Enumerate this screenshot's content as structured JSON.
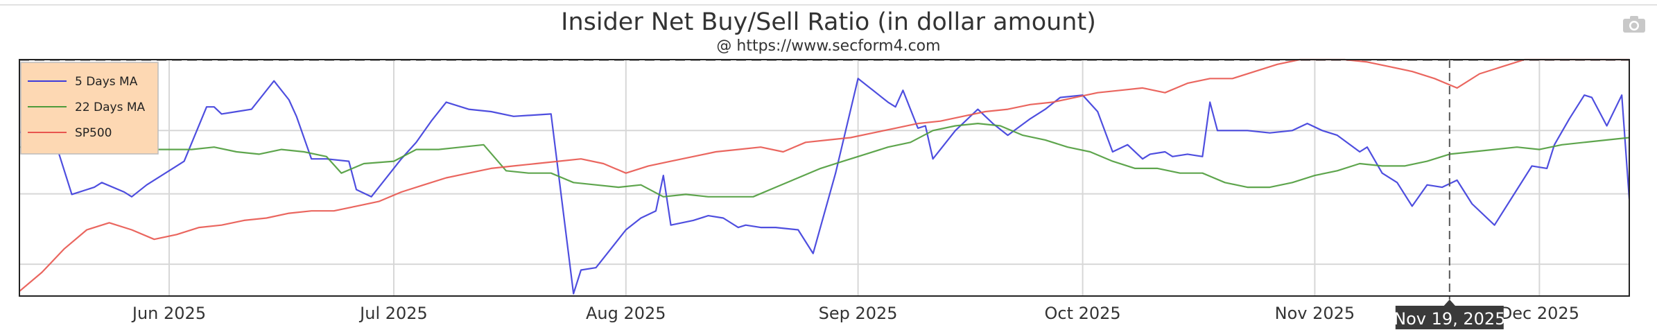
{
  "header": {
    "title": "Insider Net Buy/Sell Ratio (in dollar amount)",
    "subtitle": "@ https://www.secform4.com"
  },
  "toolbar": {
    "icon": "camera-icon"
  },
  "chart_data": {
    "type": "line",
    "title": "Insider Net Buy/Sell Ratio (in dollar amount)",
    "subtitle": "@ https://www.secform4.com",
    "x_range": [
      "2025-05-12",
      "2025-12-13"
    ],
    "y_range": [
      0,
      100
    ],
    "grid": true,
    "legend_placement": "top-left",
    "x_ticks": [
      {
        "date": "2025-06-01",
        "label": "Jun 2025"
      },
      {
        "date": "2025-07-01",
        "label": "Jul 2025"
      },
      {
        "date": "2025-08-01",
        "label": "Aug 2025"
      },
      {
        "date": "2025-09-01",
        "label": "Sep 2025"
      },
      {
        "date": "2025-10-01",
        "label": "Oct 2025"
      },
      {
        "date": "2025-11-01",
        "label": "Nov 2025"
      },
      {
        "date": "2025-12-01",
        "label": "Dec 2025"
      }
    ],
    "crosshair": {
      "date": "2025-11-19",
      "label": "Nov 19, 2025"
    },
    "series": [
      {
        "name": "5 Days MA",
        "color": "#3b3bdc",
        "points": [
          [
            "2025-05-12",
            69
          ],
          [
            "2025-05-14",
            73
          ],
          [
            "2025-05-15",
            69
          ],
          [
            "2025-05-16",
            73
          ],
          [
            "2025-05-19",
            43
          ],
          [
            "2025-05-22",
            46
          ],
          [
            "2025-05-23",
            48
          ],
          [
            "2025-05-26",
            44
          ],
          [
            "2025-05-27",
            42
          ],
          [
            "2025-05-29",
            47
          ],
          [
            "2025-06-02",
            55
          ],
          [
            "2025-06-03",
            57
          ],
          [
            "2025-06-06",
            80
          ],
          [
            "2025-06-07",
            80
          ],
          [
            "2025-06-08",
            77
          ],
          [
            "2025-06-10",
            78
          ],
          [
            "2025-06-12",
            79
          ],
          [
            "2025-06-15",
            91
          ],
          [
            "2025-06-17",
            83
          ],
          [
            "2025-06-18",
            76
          ],
          [
            "2025-06-20",
            58
          ],
          [
            "2025-06-22",
            58
          ],
          [
            "2025-06-25",
            57
          ],
          [
            "2025-06-26",
            45
          ],
          [
            "2025-06-28",
            42
          ],
          [
            "2025-07-02",
            58
          ],
          [
            "2025-07-04",
            65
          ],
          [
            "2025-07-06",
            74
          ],
          [
            "2025-07-08",
            82
          ],
          [
            "2025-07-11",
            79
          ],
          [
            "2025-07-14",
            78
          ],
          [
            "2025-07-17",
            76
          ],
          [
            "2025-07-22",
            77
          ],
          [
            "2025-07-25",
            1
          ],
          [
            "2025-07-26",
            11
          ],
          [
            "2025-07-28",
            12
          ],
          [
            "2025-07-30",
            20
          ],
          [
            "2025-08-01",
            28
          ],
          [
            "2025-08-03",
            33
          ],
          [
            "2025-08-05",
            36
          ],
          [
            "2025-08-06",
            51
          ],
          [
            "2025-08-07",
            30
          ],
          [
            "2025-08-10",
            32
          ],
          [
            "2025-08-12",
            34
          ],
          [
            "2025-08-14",
            33
          ],
          [
            "2025-08-16",
            29
          ],
          [
            "2025-08-17",
            30
          ],
          [
            "2025-08-19",
            29
          ],
          [
            "2025-08-21",
            29
          ],
          [
            "2025-08-24",
            28
          ],
          [
            "2025-08-26",
            18
          ],
          [
            "2025-08-29",
            52
          ],
          [
            "2025-09-01",
            92
          ],
          [
            "2025-09-03",
            87
          ],
          [
            "2025-09-05",
            82
          ],
          [
            "2025-09-06",
            80
          ],
          [
            "2025-09-07",
            87
          ],
          [
            "2025-09-09",
            71
          ],
          [
            "2025-09-10",
            72
          ],
          [
            "2025-09-11",
            58
          ],
          [
            "2025-09-14",
            70
          ],
          [
            "2025-09-17",
            79
          ],
          [
            "2025-09-19",
            73
          ],
          [
            "2025-09-21",
            68
          ],
          [
            "2025-09-24",
            75
          ],
          [
            "2025-09-26",
            79
          ],
          [
            "2025-09-28",
            84
          ],
          [
            "2025-10-01",
            85
          ],
          [
            "2025-10-03",
            78
          ],
          [
            "2025-10-05",
            61
          ],
          [
            "2025-10-07",
            64
          ],
          [
            "2025-10-09",
            58
          ],
          [
            "2025-10-10",
            60
          ],
          [
            "2025-10-12",
            61
          ],
          [
            "2025-10-13",
            59
          ],
          [
            "2025-10-15",
            60
          ],
          [
            "2025-10-17",
            59
          ],
          [
            "2025-10-18",
            82
          ],
          [
            "2025-10-19",
            70
          ],
          [
            "2025-10-23",
            70
          ],
          [
            "2025-10-26",
            69
          ],
          [
            "2025-10-29",
            70
          ],
          [
            "2025-10-31",
            73
          ],
          [
            "2025-11-02",
            70
          ],
          [
            "2025-11-04",
            68
          ],
          [
            "2025-11-07",
            61
          ],
          [
            "2025-11-08",
            63
          ],
          [
            "2025-11-10",
            52
          ],
          [
            "2025-11-12",
            48
          ],
          [
            "2025-11-14",
            38
          ],
          [
            "2025-11-16",
            47
          ],
          [
            "2025-11-18",
            46
          ],
          [
            "2025-11-20",
            49
          ],
          [
            "2025-11-22",
            39
          ],
          [
            "2025-11-25",
            30
          ],
          [
            "2025-11-28",
            45
          ],
          [
            "2025-11-30",
            55
          ],
          [
            "2025-12-02",
            54
          ],
          [
            "2025-12-03",
            64
          ],
          [
            "2025-12-05",
            75
          ],
          [
            "2025-12-07",
            85
          ],
          [
            "2025-12-08",
            84
          ],
          [
            "2025-12-10",
            72
          ],
          [
            "2025-12-12",
            85
          ],
          [
            "2025-12-13",
            41
          ]
        ]
      },
      {
        "name": "22 Days MA",
        "color": "#4d9b3a",
        "points": [
          [
            "2025-05-12",
            63
          ],
          [
            "2025-05-16",
            63
          ],
          [
            "2025-05-20",
            63
          ],
          [
            "2025-05-24",
            62
          ],
          [
            "2025-05-28",
            62
          ],
          [
            "2025-06-01",
            62
          ],
          [
            "2025-06-04",
            62
          ],
          [
            "2025-06-07",
            63
          ],
          [
            "2025-06-10",
            61
          ],
          [
            "2025-06-13",
            60
          ],
          [
            "2025-06-16",
            62
          ],
          [
            "2025-06-19",
            61
          ],
          [
            "2025-06-22",
            59
          ],
          [
            "2025-06-24",
            52
          ],
          [
            "2025-06-27",
            56
          ],
          [
            "2025-07-01",
            57
          ],
          [
            "2025-07-04",
            62
          ],
          [
            "2025-07-07",
            62
          ],
          [
            "2025-07-10",
            63
          ],
          [
            "2025-07-13",
            64
          ],
          [
            "2025-07-16",
            53
          ],
          [
            "2025-07-19",
            52
          ],
          [
            "2025-07-22",
            52
          ],
          [
            "2025-07-25",
            48
          ],
          [
            "2025-07-28",
            47
          ],
          [
            "2025-07-31",
            46
          ],
          [
            "2025-08-03",
            47
          ],
          [
            "2025-08-06",
            42
          ],
          [
            "2025-08-09",
            43
          ],
          [
            "2025-08-12",
            42
          ],
          [
            "2025-08-15",
            42
          ],
          [
            "2025-08-18",
            42
          ],
          [
            "2025-08-21",
            46
          ],
          [
            "2025-08-24",
            50
          ],
          [
            "2025-08-27",
            54
          ],
          [
            "2025-08-30",
            57
          ],
          [
            "2025-09-02",
            60
          ],
          [
            "2025-09-05",
            63
          ],
          [
            "2025-09-08",
            65
          ],
          [
            "2025-09-11",
            70
          ],
          [
            "2025-09-14",
            72
          ],
          [
            "2025-09-17",
            73
          ],
          [
            "2025-09-20",
            72
          ],
          [
            "2025-09-23",
            68
          ],
          [
            "2025-09-26",
            66
          ],
          [
            "2025-09-29",
            63
          ],
          [
            "2025-10-02",
            61
          ],
          [
            "2025-10-05",
            57
          ],
          [
            "2025-10-08",
            54
          ],
          [
            "2025-10-11",
            54
          ],
          [
            "2025-10-14",
            52
          ],
          [
            "2025-10-17",
            52
          ],
          [
            "2025-10-20",
            48
          ],
          [
            "2025-10-23",
            46
          ],
          [
            "2025-10-26",
            46
          ],
          [
            "2025-10-29",
            48
          ],
          [
            "2025-11-01",
            51
          ],
          [
            "2025-11-04",
            53
          ],
          [
            "2025-11-07",
            56
          ],
          [
            "2025-11-10",
            55
          ],
          [
            "2025-11-13",
            55
          ],
          [
            "2025-11-16",
            57
          ],
          [
            "2025-11-19",
            60
          ],
          [
            "2025-11-22",
            61
          ],
          [
            "2025-11-25",
            62
          ],
          [
            "2025-11-28",
            63
          ],
          [
            "2025-12-01",
            62
          ],
          [
            "2025-12-04",
            64
          ],
          [
            "2025-12-07",
            65
          ],
          [
            "2025-12-10",
            66
          ],
          [
            "2025-12-13",
            67
          ]
        ]
      },
      {
        "name": "SP500",
        "color": "#e8554e",
        "points": [
          [
            "2025-05-12",
            2
          ],
          [
            "2025-05-15",
            10
          ],
          [
            "2025-05-18",
            20
          ],
          [
            "2025-05-21",
            28
          ],
          [
            "2025-05-24",
            31
          ],
          [
            "2025-05-27",
            28
          ],
          [
            "2025-05-30",
            24
          ],
          [
            "2025-06-02",
            26
          ],
          [
            "2025-06-05",
            29
          ],
          [
            "2025-06-08",
            30
          ],
          [
            "2025-06-11",
            32
          ],
          [
            "2025-06-14",
            33
          ],
          [
            "2025-06-17",
            35
          ],
          [
            "2025-06-20",
            36
          ],
          [
            "2025-06-23",
            36
          ],
          [
            "2025-06-26",
            38
          ],
          [
            "2025-06-29",
            40
          ],
          [
            "2025-07-02",
            44
          ],
          [
            "2025-07-05",
            47
          ],
          [
            "2025-07-08",
            50
          ],
          [
            "2025-07-11",
            52
          ],
          [
            "2025-07-14",
            54
          ],
          [
            "2025-07-17",
            55
          ],
          [
            "2025-07-20",
            56
          ],
          [
            "2025-07-23",
            57
          ],
          [
            "2025-07-26",
            58
          ],
          [
            "2025-07-29",
            56
          ],
          [
            "2025-08-01",
            52
          ],
          [
            "2025-08-04",
            55
          ],
          [
            "2025-08-07",
            57
          ],
          [
            "2025-08-10",
            59
          ],
          [
            "2025-08-13",
            61
          ],
          [
            "2025-08-16",
            62
          ],
          [
            "2025-08-19",
            63
          ],
          [
            "2025-08-22",
            61
          ],
          [
            "2025-08-25",
            65
          ],
          [
            "2025-08-28",
            66
          ],
          [
            "2025-08-31",
            67
          ],
          [
            "2025-09-03",
            69
          ],
          [
            "2025-09-06",
            71
          ],
          [
            "2025-09-09",
            73
          ],
          [
            "2025-09-12",
            74
          ],
          [
            "2025-09-15",
            76
          ],
          [
            "2025-09-18",
            78
          ],
          [
            "2025-09-21",
            79
          ],
          [
            "2025-09-24",
            81
          ],
          [
            "2025-09-27",
            82
          ],
          [
            "2025-09-30",
            84
          ],
          [
            "2025-10-03",
            86
          ],
          [
            "2025-10-06",
            87
          ],
          [
            "2025-10-09",
            88
          ],
          [
            "2025-10-12",
            86
          ],
          [
            "2025-10-15",
            90
          ],
          [
            "2025-10-18",
            92
          ],
          [
            "2025-10-21",
            92
          ],
          [
            "2025-10-24",
            95
          ],
          [
            "2025-10-27",
            98
          ],
          [
            "2025-10-30",
            100
          ],
          [
            "2025-11-02",
            101
          ],
          [
            "2025-11-05",
            100
          ],
          [
            "2025-11-08",
            99
          ],
          [
            "2025-11-11",
            97
          ],
          [
            "2025-11-14",
            95
          ],
          [
            "2025-11-17",
            92
          ],
          [
            "2025-11-20",
            88
          ],
          [
            "2025-11-23",
            94
          ],
          [
            "2025-11-26",
            97
          ],
          [
            "2025-11-29",
            100
          ],
          [
            "2025-12-02",
            100
          ],
          [
            "2025-12-05",
            101
          ],
          [
            "2025-12-08",
            102
          ],
          [
            "2025-12-11",
            101
          ],
          [
            "2025-12-13",
            102
          ]
        ]
      }
    ]
  }
}
